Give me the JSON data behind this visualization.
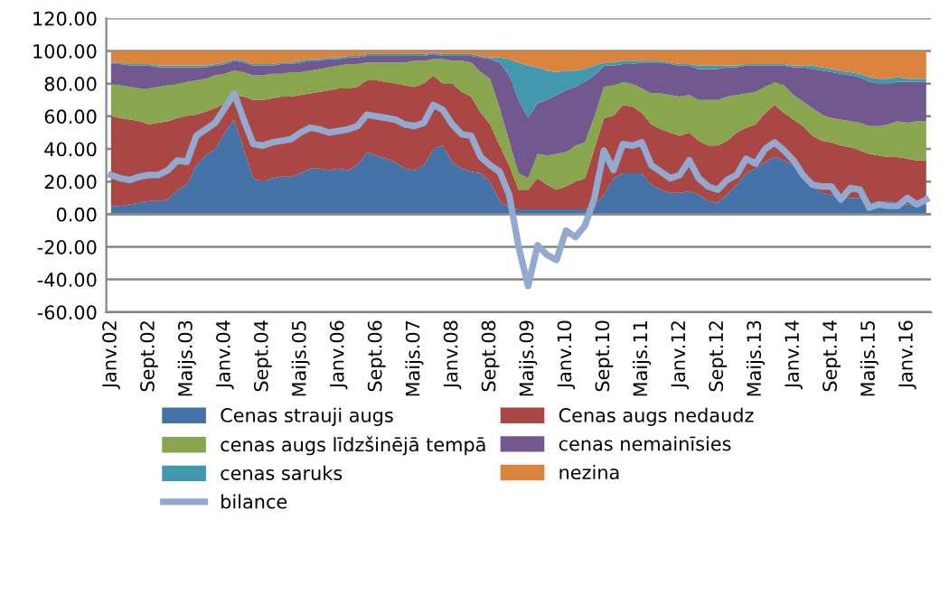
{
  "chart_data": {
    "type": "area",
    "stacked": true,
    "categories": [
      "Janv.02",
      null,
      null,
      null,
      "Sept.02",
      null,
      null,
      null,
      "Maijs.03",
      null,
      null,
      null,
      "Janv.04",
      null,
      null,
      null,
      "Sept.04",
      null,
      null,
      null,
      "Maijs.05",
      null,
      null,
      null,
      "Janv.06",
      null,
      null,
      null,
      "Sept.06",
      null,
      null,
      null,
      "Maijs.07",
      null,
      null,
      null,
      "Janv.08",
      null,
      null,
      null,
      "Sept.08",
      null,
      null,
      null,
      "Maijs.09",
      null,
      null,
      null,
      "Janv.10",
      null,
      null,
      null,
      "Sept.10",
      null,
      null,
      null,
      "Maijs.11",
      null,
      null,
      null,
      "Janv.12",
      null,
      null,
      null,
      "Sept.12",
      null,
      null,
      null,
      "Maijs.13",
      null,
      null,
      null,
      "Janv.14",
      null,
      null,
      null,
      "Sept.14",
      null,
      null,
      null,
      "Maijs.15",
      null,
      null,
      null,
      "Janv.16",
      null,
      null
    ],
    "series": [
      {
        "name": "Cenas strauji augs",
        "color": "#4572a7",
        "values": [
          5,
          5,
          6,
          7,
          8,
          8,
          9,
          15,
          18,
          30,
          36,
          40,
          50,
          58,
          40,
          22,
          20,
          22,
          23,
          23,
          25,
          28,
          28,
          27,
          28,
          27,
          30,
          38,
          36,
          34,
          32,
          28,
          27,
          30,
          40,
          42,
          32,
          28,
          26,
          25,
          20,
          8,
          4,
          3,
          3,
          3,
          3,
          3,
          3,
          3,
          3,
          5,
          12,
          22,
          25,
          25,
          25,
          18,
          15,
          13,
          13,
          14,
          12,
          8,
          7,
          12,
          18,
          25,
          28,
          32,
          35,
          33,
          30,
          25,
          17,
          13,
          12,
          9,
          10,
          10,
          6,
          7,
          8,
          7,
          6,
          5,
          6
        ]
      },
      {
        "name": "Cenas augs nedaudz",
        "color": "#aa4643",
        "values": [
          55,
          54,
          52,
          50,
          47,
          48,
          48,
          44,
          42,
          31,
          27,
          25,
          18,
          15,
          32,
          48,
          50,
          49,
          49,
          49,
          48,
          46,
          47,
          49,
          49,
          50,
          48,
          44,
          46,
          47,
          48,
          51,
          51,
          50,
          45,
          38,
          48,
          47,
          46,
          37,
          35,
          34,
          26,
          12,
          12,
          19,
          15,
          12,
          14,
          17,
          19,
          35,
          47,
          38,
          42,
          41,
          37,
          37,
          37,
          37,
          35,
          36,
          33,
          34,
          35,
          33,
          32,
          28,
          27,
          30,
          32,
          29,
          28,
          29,
          31,
          32,
          32,
          33,
          31,
          29,
          31,
          29,
          27,
          28,
          28,
          28,
          27
        ]
      },
      {
        "name": "cenas augs līdzšinējā tempā",
        "color": "#89a54e",
        "values": [
          20,
          20,
          20,
          20,
          22,
          22,
          22,
          21,
          21,
          21,
          20,
          20,
          18,
          15,
          15,
          15,
          15,
          15,
          14,
          15,
          14,
          14,
          14,
          14,
          14,
          15,
          14,
          11,
          11,
          12,
          13,
          14,
          16,
          14,
          10,
          15,
          14,
          19,
          21,
          25,
          28,
          23,
          15,
          10,
          7,
          15,
          18,
          22,
          21,
          22,
          22,
          20,
          19,
          19,
          14,
          14,
          15,
          19,
          22,
          23,
          24,
          23,
          25,
          28,
          28,
          27,
          23,
          21,
          20,
          16,
          14,
          17,
          15,
          15,
          17,
          16,
          15,
          16,
          16,
          17,
          17,
          18,
          20,
          22,
          22,
          24,
          24
        ]
      },
      {
        "name": "cenas nemainīsies",
        "color": "#71588f",
        "values": [
          12,
          13,
          13,
          14,
          14,
          12,
          11,
          10,
          9,
          8,
          7,
          6,
          6,
          6,
          6,
          6,
          6,
          5,
          6,
          5,
          6,
          6,
          5,
          5,
          4,
          4,
          4,
          4,
          4,
          4,
          4,
          4,
          3,
          3,
          3,
          2,
          3,
          3,
          4,
          9,
          12,
          28,
          40,
          45,
          37,
          31,
          34,
          36,
          38,
          36,
          37,
          25,
          13,
          12,
          11,
          12,
          16,
          19,
          19,
          19,
          19,
          18,
          19,
          19,
          19,
          18,
          17,
          17,
          16,
          13,
          10,
          12,
          17,
          21,
          24,
          27,
          28,
          28,
          28,
          28,
          27,
          26,
          25,
          24,
          25,
          24,
          24
        ]
      },
      {
        "name": "cenas saruks",
        "color": "#4198af",
        "values": [
          1,
          1,
          1,
          1,
          1,
          1,
          1,
          1,
          1,
          1,
          1,
          1,
          1,
          1,
          1,
          1,
          1,
          1,
          1,
          1,
          1,
          1,
          1,
          1,
          1,
          1,
          1,
          1,
          1,
          1,
          1,
          1,
          1,
          1,
          1,
          1,
          1,
          1,
          1,
          1,
          1,
          3,
          10,
          23,
          32,
          22,
          18,
          14,
          12,
          10,
          8,
          6,
          2,
          2,
          2,
          2,
          1,
          1,
          1,
          1,
          1,
          1,
          2,
          2,
          2,
          1,
          1,
          1,
          1,
          1,
          1,
          1,
          1,
          1,
          2,
          2,
          2,
          2,
          2,
          2,
          3,
          3,
          3,
          3,
          2,
          2,
          2
        ]
      },
      {
        "name": "nezina",
        "color": "#db843d",
        "values": [
          7,
          7,
          8,
          8,
          8,
          9,
          9,
          9,
          9,
          9,
          9,
          8,
          7,
          5,
          6,
          8,
          8,
          8,
          7,
          7,
          6,
          5,
          5,
          4,
          4,
          3,
          3,
          2,
          2,
          2,
          2,
          2,
          2,
          2,
          1,
          2,
          2,
          2,
          2,
          3,
          4,
          4,
          5,
          7,
          9,
          10,
          12,
          13,
          12,
          12,
          11,
          9,
          7,
          7,
          6,
          6,
          6,
          6,
          6,
          7,
          8,
          8,
          9,
          9,
          9,
          9,
          9,
          8,
          8,
          8,
          8,
          8,
          9,
          9,
          9,
          10,
          11,
          12,
          13,
          14,
          16,
          17,
          17,
          16,
          17,
          17,
          17
        ]
      },
      {
        "name": "bilance",
        "type": "line",
        "color": "#93a9cf",
        "line_style": "solid",
        "values": [
          24,
          22,
          21,
          23,
          24,
          24,
          27,
          33,
          32,
          48,
          52,
          56,
          65,
          74,
          58,
          43,
          42,
          44,
          45,
          46,
          50,
          53,
          52,
          50,
          51,
          52,
          54,
          61,
          60,
          59,
          58,
          55,
          54,
          56,
          67,
          64,
          55,
          49,
          48,
          35,
          30,
          26,
          12,
          -20,
          -44,
          -19,
          -25,
          -28,
          -10,
          -14,
          -7,
          10,
          39,
          27,
          43,
          42,
          44,
          30,
          26,
          22,
          24,
          33,
          22,
          17,
          15,
          21,
          24,
          34,
          31,
          40,
          44,
          39,
          33,
          24,
          18,
          17,
          17,
          9,
          16,
          15,
          4,
          6,
          5,
          5,
          10,
          6,
          9
        ]
      }
    ],
    "ylim": [
      -60,
      120
    ],
    "yticks": [
      {
        "value": -60,
        "label": "-60.00"
      },
      {
        "value": -40,
        "label": "-40.00"
      },
      {
        "value": -20,
        "label": "-20.00"
      },
      {
        "value": 0,
        "label": "0.00"
      },
      {
        "value": 20,
        "label": "20.00"
      },
      {
        "value": 40,
        "label": "40.00"
      },
      {
        "value": 60,
        "label": "60.00"
      },
      {
        "value": 80,
        "label": "80.00"
      },
      {
        "value": 100,
        "label": "100.00"
      },
      {
        "value": 120,
        "label": "120.00"
      }
    ],
    "grid": "y",
    "legend": "bottom"
  }
}
